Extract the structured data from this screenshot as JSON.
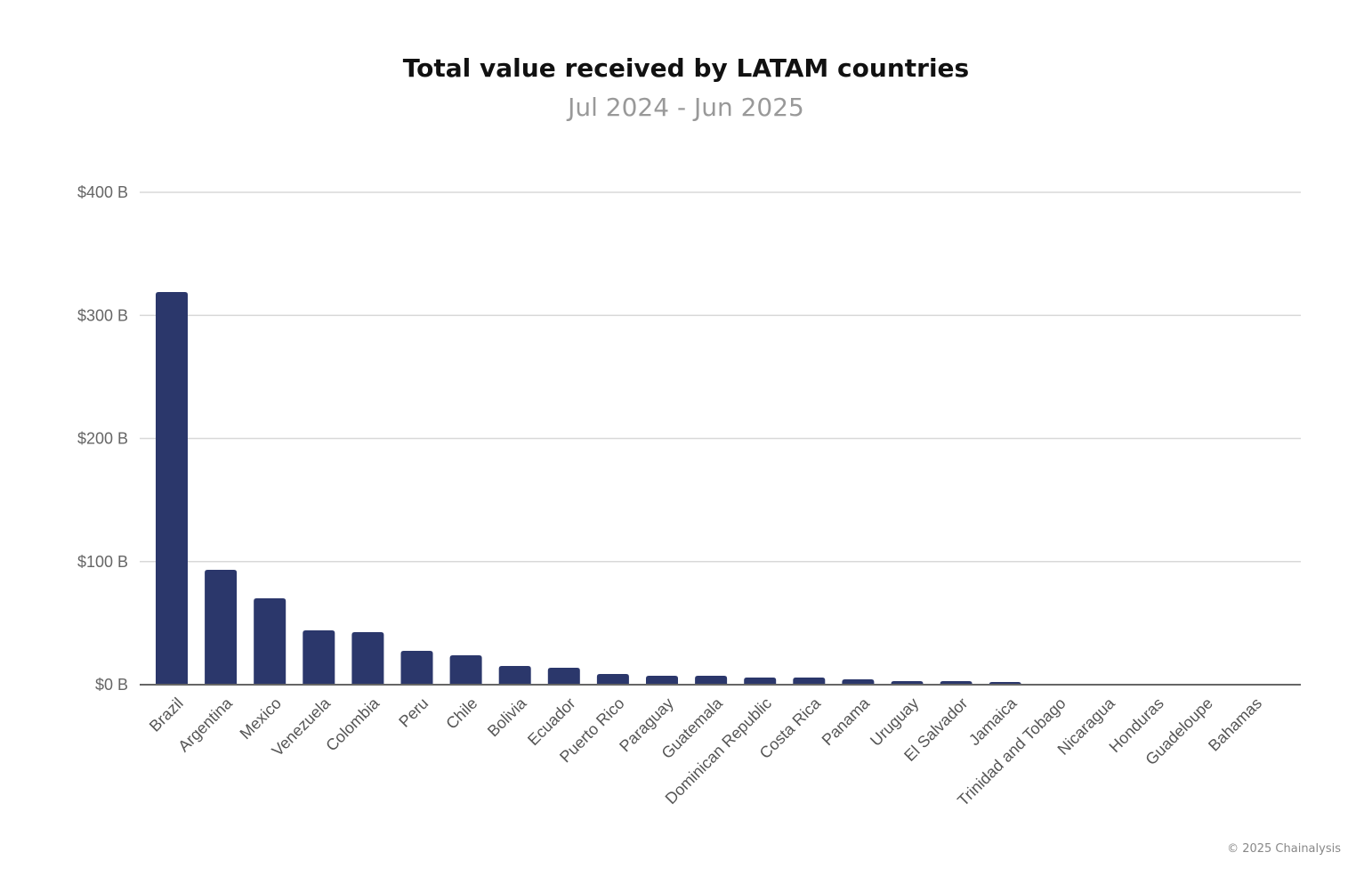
{
  "chart_data": {
    "type": "bar",
    "title": "Total value received by LATAM countries",
    "subtitle": "Jul 2024 - Jun 2025",
    "xlabel": "",
    "ylabel": "",
    "ylim": [
      0,
      400
    ],
    "yticks": [
      0,
      100,
      200,
      300,
      400
    ],
    "ytick_labels": [
      "$0 B",
      "$100 B",
      "$200 B",
      "$300 B",
      "$400 B"
    ],
    "grid": true,
    "categories": [
      "Brazil",
      "Argentina",
      "Mexico",
      "Venezuela",
      "Colombia",
      "Peru",
      "Chile",
      "Bolivia",
      "Ecuador",
      "Puerto Rico",
      "Paraguay",
      "Guatemala",
      "Dominican Republic",
      "Costa Rica",
      "Panama",
      "Uruguay",
      "El Salvador",
      "Jamaica",
      "Trinidad and Tobago",
      "Nicaragua",
      "Honduras",
      "Guadeloupe",
      "Bahamas"
    ],
    "values": [
      319,
      93.3,
      70.2,
      44.1,
      42.7,
      27.5,
      23.9,
      15.2,
      13.7,
      8.7,
      7.2,
      7.2,
      5.8,
      5.8,
      4.3,
      2.9,
      2.9,
      2.2,
      0.5,
      0.4,
      0.4,
      0.1,
      0.1
    ],
    "unit": "USD billions",
    "bar_color": "#2b376b"
  },
  "credit": "© 2025 Chainalysis"
}
